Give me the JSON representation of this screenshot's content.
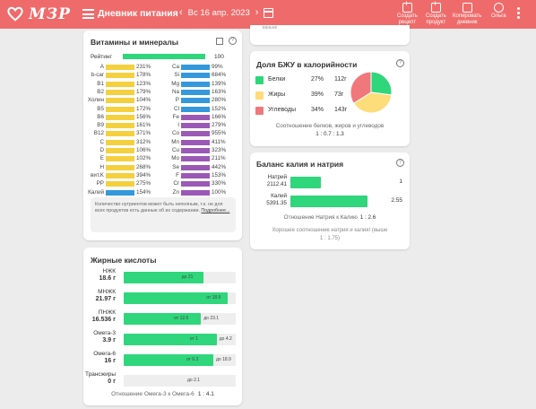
{
  "header": {
    "logo_text": "МЗР",
    "title": "Дневник питания",
    "date": "Вс 16 апр. 2023",
    "actions": [
      {
        "line1": "Создать",
        "line2": "рецепт"
      },
      {
        "line1": "Создать",
        "line2": "продукт"
      },
      {
        "line1": "Копировать",
        "line2": "дневник"
      },
      {
        "line1": "Ольга",
        "line2": ""
      }
    ],
    "colors": {
      "bar": "#ef6b6b"
    }
  },
  "top_card": {
    "text": "ваньне"
  },
  "vitamins": {
    "title": "Витамины и минералы",
    "rating_label": "Рейтинг",
    "rating_value": "100",
    "rating_percent": 100,
    "left": [
      {
        "name": "A",
        "pct": "231%",
        "value": 231,
        "color": "#f4d03f"
      },
      {
        "name": "b-car",
        "pct": "178%",
        "value": 178,
        "color": "#f4d03f"
      },
      {
        "name": "B1",
        "pct": "123%",
        "value": 123,
        "color": "#f4d03f"
      },
      {
        "name": "B2",
        "pct": "179%",
        "value": 179,
        "color": "#f4d03f"
      },
      {
        "name": "Холин",
        "pct": "104%",
        "value": 104,
        "color": "#f4d03f"
      },
      {
        "name": "B5",
        "pct": "172%",
        "value": 172,
        "color": "#f4d03f"
      },
      {
        "name": "B6",
        "pct": "156%",
        "value": 156,
        "color": "#f4d03f"
      },
      {
        "name": "B9",
        "pct": "161%",
        "value": 161,
        "color": "#f4d03f"
      },
      {
        "name": "B12",
        "pct": "371%",
        "value": 371,
        "color": "#f4d03f"
      },
      {
        "name": "C",
        "pct": "312%",
        "value": 312,
        "color": "#f4d03f"
      },
      {
        "name": "D",
        "pct": "106%",
        "value": 106,
        "color": "#f4d03f"
      },
      {
        "name": "E",
        "pct": "102%",
        "value": 102,
        "color": "#f4d03f"
      },
      {
        "name": "H",
        "pct": "268%",
        "value": 268,
        "color": "#f4d03f"
      },
      {
        "name": "вит.K",
        "pct": "394%",
        "value": 394,
        "color": "#f4d03f"
      },
      {
        "name": "PP",
        "pct": "275%",
        "value": 275,
        "color": "#f4d03f"
      },
      {
        "name": "Калий",
        "pct": "154%",
        "value": 154,
        "color": "#3498db"
      }
    ],
    "right": [
      {
        "name": "Ca",
        "pct": "99%",
        "value": 99,
        "color": "#3498db"
      },
      {
        "name": "Si",
        "pct": "684%",
        "value": 684,
        "color": "#3498db"
      },
      {
        "name": "Mg",
        "pct": "139%",
        "value": 139,
        "color": "#3498db"
      },
      {
        "name": "Na",
        "pct": "163%",
        "value": 163,
        "color": "#3498db"
      },
      {
        "name": "P",
        "pct": "280%",
        "value": 280,
        "color": "#3498db"
      },
      {
        "name": "Cl",
        "pct": "152%",
        "value": 152,
        "color": "#3498db"
      },
      {
        "name": "Fe",
        "pct": "166%",
        "value": 166,
        "color": "#9b59b6"
      },
      {
        "name": "I",
        "pct": "279%",
        "value": 279,
        "color": "#9b59b6"
      },
      {
        "name": "Co",
        "pct": "955%",
        "value": 955,
        "color": "#9b59b6"
      },
      {
        "name": "Mn",
        "pct": "411%",
        "value": 411,
        "color": "#9b59b6"
      },
      {
        "name": "Cu",
        "pct": "323%",
        "value": 323,
        "color": "#9b59b6"
      },
      {
        "name": "Mo",
        "pct": "211%",
        "value": 211,
        "color": "#9b59b6"
      },
      {
        "name": "Se",
        "pct": "442%",
        "value": 442,
        "color": "#9b59b6"
      },
      {
        "name": "F",
        "pct": "153%",
        "value": 153,
        "color": "#9b59b6"
      },
      {
        "name": "Cr",
        "pct": "330%",
        "value": 330,
        "color": "#9b59b6"
      },
      {
        "name": "Zn",
        "pct": "100%",
        "value": 100,
        "color": "#9b59b6"
      }
    ],
    "note_text": "Количество нутриентов может быть неполным, т.к. не для всех продуктов есть данные об их содержании.",
    "note_link": "Подробнее..."
  },
  "fatty": {
    "title": "Жирные кислоты",
    "rows": [
      {
        "name": "НЖК",
        "value": "18.6 г",
        "limit": "до 21",
        "fill_fraction": 0.71
      },
      {
        "name": "МНЖК",
        "value": "21.97 г",
        "limit": "от 18.9",
        "fill_fraction": 0.93
      },
      {
        "name": "ПНЖК",
        "value": "16.536 г",
        "limit": "от 12.6",
        "limit2": "до 23.1",
        "fill_fraction": 0.69
      },
      {
        "name": "Омега-3",
        "value": "3.9 г",
        "limit": "от 1",
        "limit2": "до 4.2",
        "fill_fraction": 0.83
      },
      {
        "name": "Омега-6",
        "value": "16 г",
        "limit": "от 6.3",
        "limit2": "до 18.9",
        "fill_fraction": 0.8
      },
      {
        "name": "Трансжиры",
        "value": "0 г",
        "limit": "до 2.1",
        "fill_fraction": 0
      }
    ],
    "ratio_label": "Отношение Омега-3 к Омега-6",
    "ratio_value": "1 : 4.1"
  },
  "bju": {
    "title": "Доля БЖУ в калорийности",
    "rows": [
      {
        "name": "Белки",
        "pct": "27%",
        "grams": "112г",
        "color": "#2fd67b",
        "share": 27
      },
      {
        "name": "Жиры",
        "pct": "39%",
        "grams": "73г",
        "color": "#fddc7a",
        "share": 39
      },
      {
        "name": "Углеводы",
        "pct": "34%",
        "grams": "143г",
        "color": "#f0787c",
        "share": 34
      }
    ],
    "caption": "Соотношение белков, жиров и углеводов",
    "caption_value": "1 : 0.7 : 1.3"
  },
  "kna": {
    "title": "Баланс калия и натрия",
    "rows": [
      {
        "name": "Натрий",
        "value": "2112.41",
        "ratio": "1",
        "fill_fraction": 0.27
      },
      {
        "name": "Калий",
        "value": "5391.35",
        "ratio": "2.55",
        "fill_fraction": 0.69
      }
    ],
    "ratio_label": "Отношение Натрия к Калию",
    "ratio_value": "1 : 2.6",
    "note_line1": "Хорошее соотношение натрия и калия! (выше",
    "note_line2": "1 : 1.75)"
  }
}
